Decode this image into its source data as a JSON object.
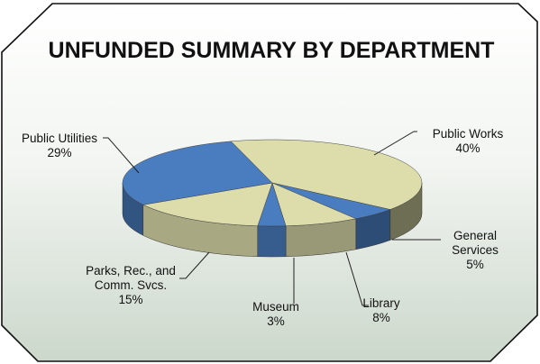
{
  "chart_data": {
    "type": "pie",
    "title": "UNFUNDED SUMMARY BY DEPARTMENT",
    "categories": [
      "Public Works",
      "General Services",
      "Library",
      "Museum",
      "Parks, Rec., and Comm. Svcs.",
      "Public Utilities"
    ],
    "values": [
      40,
      5,
      8,
      3,
      15,
      29
    ],
    "labels": [
      {
        "lines": [
          "Public Works",
          "40%"
        ]
      },
      {
        "lines": [
          "General",
          "Services",
          "5%"
        ]
      },
      {
        "lines": [
          "Library",
          "8%"
        ]
      },
      {
        "lines": [
          "Museum",
          "3%"
        ]
      },
      {
        "lines": [
          "Parks, Rec., and",
          "Comm. Svcs.",
          "15%"
        ]
      },
      {
        "lines": [
          "Public Utilities",
          "29%"
        ]
      }
    ],
    "colors": [
      "#ddddab",
      "#4a7cc0",
      "#ddddab",
      "#4a7cc0",
      "#ddddab",
      "#4a7cc0"
    ]
  }
}
